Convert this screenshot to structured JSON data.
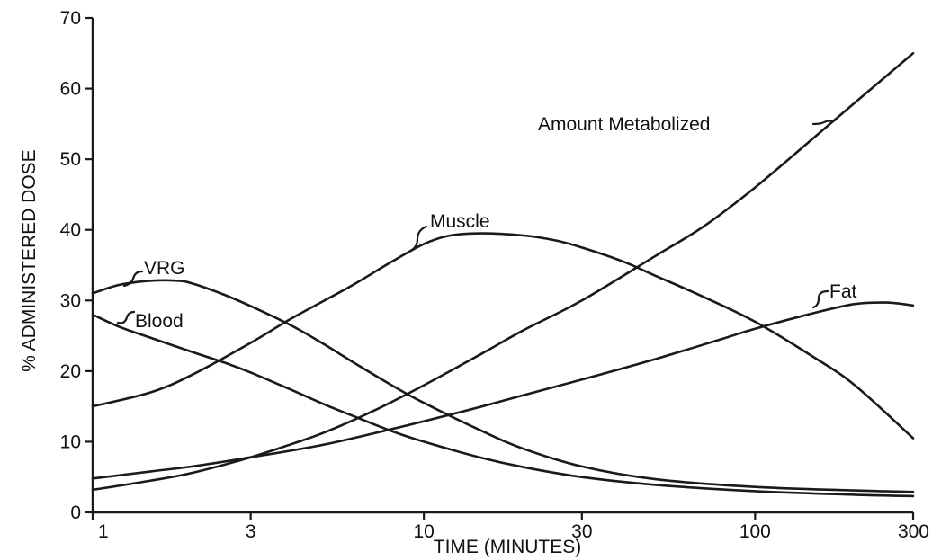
{
  "chart_data": {
    "type": "line",
    "title": "",
    "xlabel": "TIME (MINUTES)",
    "ylabel": "% ADMINISTERED DOSE",
    "x_scale": "log",
    "xlim": [
      1,
      300
    ],
    "ylim": [
      0,
      70
    ],
    "x_ticks": [
      1,
      3,
      10,
      30,
      100,
      300
    ],
    "x_tick_labels": [
      "1",
      "3",
      "10",
      "30",
      "100",
      "300"
    ],
    "y_ticks": [
      0,
      10,
      20,
      30,
      40,
      50,
      60,
      70
    ],
    "y_tick_labels": [
      "0",
      "10",
      "20",
      "30",
      "40",
      "50",
      "60",
      "70"
    ],
    "grid": false,
    "legend": "none (series labeled directly on curves)",
    "line_color": "#1a1a1a",
    "series": [
      {
        "name": "Blood",
        "x": [
          1,
          1.2,
          1.5,
          2,
          2.5,
          3,
          4,
          5,
          6,
          8,
          10,
          15,
          20,
          30,
          50,
          100,
          200,
          300
        ],
        "y": [
          28,
          26.3,
          24.7,
          22.7,
          21.2,
          19.8,
          17.3,
          15.3,
          13.8,
          11.5,
          10,
          7.7,
          6.4,
          5.0,
          3.9,
          3.0,
          2.5,
          2.3
        ]
      },
      {
        "name": "VRG",
        "x": [
          1,
          1.2,
          1.5,
          1.8,
          2,
          2.5,
          3,
          4,
          5,
          6,
          8,
          10,
          15,
          20,
          30,
          50,
          100,
          200,
          300
        ],
        "y": [
          31,
          32.2,
          32.8,
          32.8,
          32.4,
          30.8,
          29.2,
          26.4,
          23.8,
          21.5,
          18.0,
          15.5,
          11.5,
          9.0,
          6.5,
          4.7,
          3.6,
          3.1,
          2.9
        ]
      },
      {
        "name": "Muscle",
        "x": [
          1,
          1.5,
          2,
          3,
          4,
          6,
          8,
          10,
          12,
          15,
          20,
          25,
          30,
          40,
          50,
          70,
          100,
          150,
          200,
          300
        ],
        "y": [
          15,
          17,
          19.5,
          24,
          27.5,
          32,
          35.5,
          38,
          39.2,
          39.5,
          39.2,
          38.5,
          37.5,
          35.5,
          33.5,
          30.5,
          27,
          22,
          18,
          10.5
        ]
      },
      {
        "name": "Fat",
        "x": [
          1,
          1.5,
          2,
          3,
          5,
          8,
          10,
          15,
          20,
          30,
          50,
          80,
          100,
          150,
          200,
          250,
          300
        ],
        "y": [
          4.8,
          5.8,
          6.5,
          7.8,
          9.6,
          11.8,
          12.9,
          15,
          16.6,
          18.8,
          21.7,
          24.6,
          26,
          28.2,
          29.5,
          29.7,
          29.3
        ]
      },
      {
        "name": "Amount Metabolized",
        "x": [
          1,
          1.5,
          2,
          3,
          4,
          5,
          7,
          10,
          15,
          20,
          30,
          50,
          70,
          100,
          150,
          200,
          300
        ],
        "y": [
          3.2,
          4.5,
          5.6,
          7.8,
          9.7,
          11.3,
          14.3,
          18,
          22.5,
          25.8,
          30,
          36.3,
          40.5,
          46,
          53,
          58,
          65
        ]
      }
    ]
  }
}
